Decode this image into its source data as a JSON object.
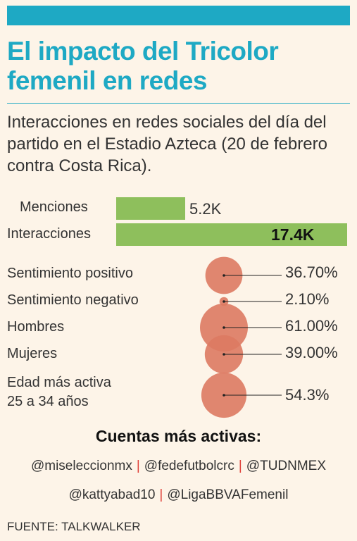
{
  "title": "El impacto del Tricolor femenil en redes",
  "subtitle": "Interacciones en redes sociales del día del partido en el Estadio Azteca (20 de febrero contra Costa Rica).",
  "colors": {
    "accent": "#1ea9c4",
    "bar": "#8ebf5c",
    "bubble": "#dd7a62",
    "separator": "#e0413a",
    "background": "#fdf4e8"
  },
  "chart_data": [
    {
      "type": "bar",
      "orientation": "horizontal",
      "categories": [
        "Menciones",
        "Interacciones"
      ],
      "values": [
        5.2,
        17.4
      ],
      "value_labels": [
        "5.2K",
        "17.4K"
      ],
      "unit": "K"
    },
    {
      "type": "scatter",
      "subtype": "bubble",
      "categories": [
        "Sentimiento positivo",
        "Sentimiento negativo",
        "Hombres",
        "Mujeres",
        "Edad más activa 25 a 34 años"
      ],
      "values": [
        36.7,
        2.1,
        61.0,
        39.0,
        54.3
      ],
      "value_labels": [
        "36.70%",
        "2.10%",
        "61.00%",
        "39.00%",
        "54.3%"
      ],
      "unit": "%"
    }
  ],
  "stats": {
    "labels": [
      "Sentimiento positivo",
      "Sentimiento negativo",
      "Hombres",
      "Mujeres",
      "Edad más activa\n25 a 34 años"
    ]
  },
  "accounts": {
    "title": "Cuentas más activas:",
    "row1": [
      "@miseleccionmx",
      "@fedefutbolcrc",
      "@TUDNMEX"
    ],
    "row2": [
      "@kattyabad10",
      "@LigaBBVAFemenil"
    ]
  },
  "source": "FUENTE: TALKWALKER"
}
